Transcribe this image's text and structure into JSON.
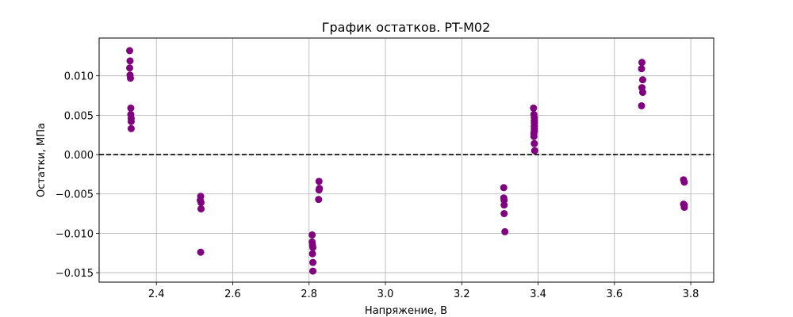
{
  "chart_data": {
    "type": "scatter",
    "title": "График остатков. PT-M02",
    "xlabel": "Напряжение, В",
    "ylabel": "Остатки, МПа",
    "xlim": [
      2.25,
      3.86
    ],
    "ylim": [
      -0.0162,
      0.0148
    ],
    "x_ticks": [
      2.4,
      2.6,
      2.8,
      3.0,
      3.2,
      3.4,
      3.6,
      3.8
    ],
    "y_ticks": [
      0.01,
      0.005,
      0.0,
      -0.005,
      -0.01,
      -0.015
    ],
    "x_tick_labels": [
      "2.4",
      "2.6",
      "2.8",
      "3.0",
      "3.2",
      "3.4",
      "3.6",
      "3.8"
    ],
    "y_tick_labels": [
      "0.010",
      "0.005",
      "0.000",
      "−0.005",
      "−0.010",
      "−0.015"
    ],
    "grid": true,
    "reference_line": {
      "y": 0.0,
      "style": "dashed",
      "color": "#000000"
    },
    "marker_color": "#800080",
    "points": [
      {
        "x": 2.33,
        "y": 0.0132
      },
      {
        "x": 2.331,
        "y": 0.0119
      },
      {
        "x": 2.33,
        "y": 0.011
      },
      {
        "x": 2.331,
        "y": 0.0101
      },
      {
        "x": 2.332,
        "y": 0.0097
      },
      {
        "x": 2.333,
        "y": 0.0059
      },
      {
        "x": 2.333,
        "y": 0.0051
      },
      {
        "x": 2.334,
        "y": 0.0046
      },
      {
        "x": 2.334,
        "y": 0.0042
      },
      {
        "x": 2.334,
        "y": 0.0033
      },
      {
        "x": 2.516,
        "y": -0.0053
      },
      {
        "x": 2.515,
        "y": -0.0058
      },
      {
        "x": 2.517,
        "y": -0.0061
      },
      {
        "x": 2.517,
        "y": -0.0069
      },
      {
        "x": 2.516,
        "y": -0.0124
      },
      {
        "x": 2.808,
        "y": -0.0102
      },
      {
        "x": 2.808,
        "y": -0.0111
      },
      {
        "x": 2.809,
        "y": -0.0115
      },
      {
        "x": 2.81,
        "y": -0.0118
      },
      {
        "x": 2.809,
        "y": -0.0126
      },
      {
        "x": 2.81,
        "y": -0.0137
      },
      {
        "x": 2.81,
        "y": -0.0148
      },
      {
        "x": 2.826,
        "y": -0.0034
      },
      {
        "x": 2.827,
        "y": -0.0043
      },
      {
        "x": 2.826,
        "y": -0.0045
      },
      {
        "x": 2.825,
        "y": -0.0057
      },
      {
        "x": 3.31,
        "y": -0.0042
      },
      {
        "x": 3.31,
        "y": -0.0055
      },
      {
        "x": 3.311,
        "y": -0.0058
      },
      {
        "x": 3.311,
        "y": -0.0064
      },
      {
        "x": 3.311,
        "y": -0.0075
      },
      {
        "x": 3.313,
        "y": -0.0098
      },
      {
        "x": 3.388,
        "y": 0.0059
      },
      {
        "x": 3.389,
        "y": 0.0051
      },
      {
        "x": 3.39,
        "y": 0.0047
      },
      {
        "x": 3.39,
        "y": 0.0043
      },
      {
        "x": 3.39,
        "y": 0.004
      },
      {
        "x": 3.39,
        "y": 0.0036
      },
      {
        "x": 3.39,
        "y": 0.0033
      },
      {
        "x": 3.39,
        "y": 0.003
      },
      {
        "x": 3.389,
        "y": 0.0027
      },
      {
        "x": 3.389,
        "y": 0.0023
      },
      {
        "x": 3.39,
        "y": 0.0014
      },
      {
        "x": 3.391,
        "y": 0.0005
      },
      {
        "x": 3.672,
        "y": 0.0117
      },
      {
        "x": 3.671,
        "y": 0.0109
      },
      {
        "x": 3.674,
        "y": 0.0095
      },
      {
        "x": 3.672,
        "y": 0.0085
      },
      {
        "x": 3.674,
        "y": 0.0079
      },
      {
        "x": 3.671,
        "y": 0.0062
      },
      {
        "x": 3.781,
        "y": -0.0032
      },
      {
        "x": 3.783,
        "y": -0.0035
      },
      {
        "x": 3.781,
        "y": -0.0063
      },
      {
        "x": 3.783,
        "y": -0.0064
      },
      {
        "x": 3.783,
        "y": -0.0067
      }
    ]
  }
}
